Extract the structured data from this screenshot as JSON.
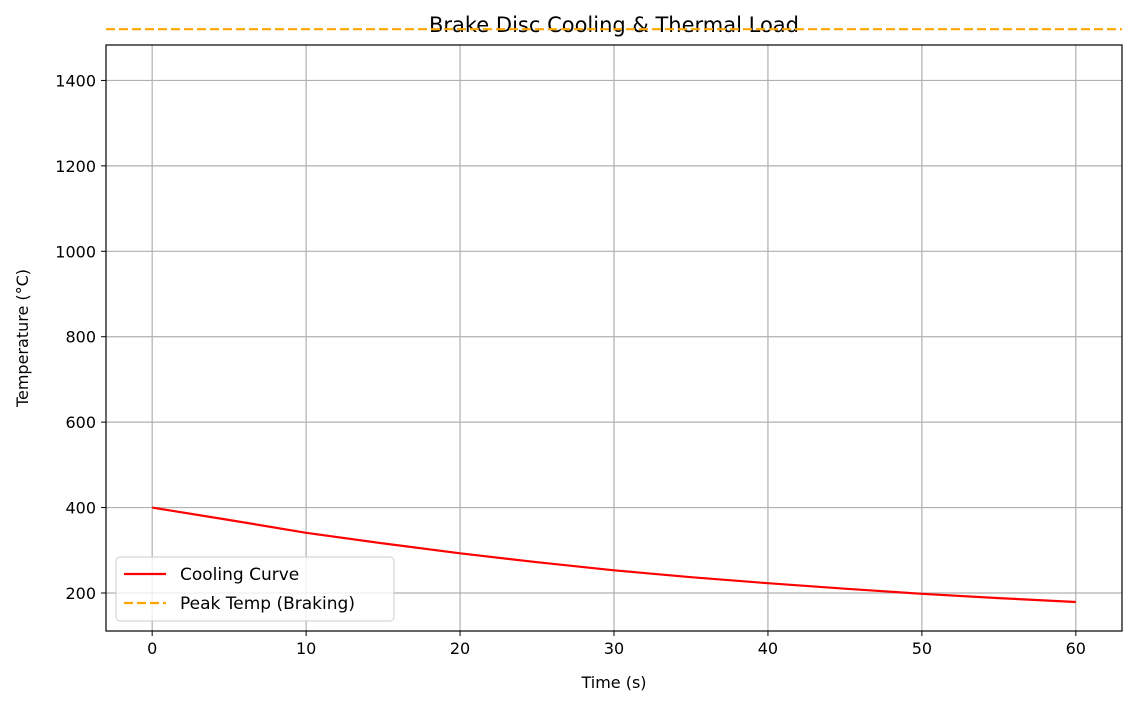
{
  "chart_data": {
    "type": "line",
    "title": "Brake Disc Cooling & Thermal Load",
    "xlabel": "Time (s)",
    "ylabel": "Temperature (°C)",
    "xlim": [
      -3,
      63
    ],
    "ylim": [
      111,
      1483
    ],
    "xticks": [
      0,
      10,
      20,
      30,
      40,
      50,
      60
    ],
    "yticks": [
      200,
      400,
      600,
      800,
      1000,
      1200,
      1400
    ],
    "grid": true,
    "legend_position": "lower-left",
    "series": [
      {
        "name": "Cooling Curve",
        "style": "solid",
        "color": "#ff0000",
        "x": [
          0,
          5,
          10,
          15,
          20,
          25,
          30,
          35,
          40,
          45,
          50,
          55,
          60
        ],
        "y": [
          400,
          371,
          341,
          316,
          293,
          272,
          253,
          237,
          223,
          210,
          198,
          188,
          179
        ]
      },
      {
        "name": "Peak Temp (Braking)",
        "style": "dashed",
        "color": "#ffa500",
        "hline": 1520
      }
    ]
  }
}
